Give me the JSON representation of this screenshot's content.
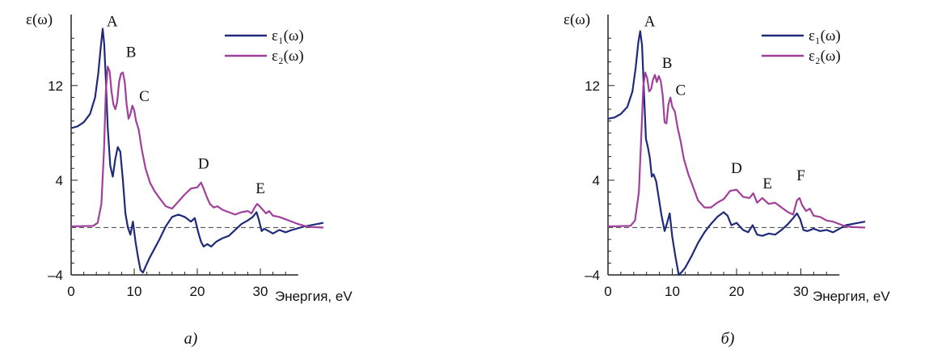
{
  "chart_data": [
    {
      "type": "line",
      "panel_caption": "а)",
      "ylabel": "ε(ω)",
      "xlabel": "Энергия, eV",
      "xlim": [
        0,
        40
      ],
      "ylim": [
        -4,
        18
      ],
      "x_ticks": [
        0,
        10,
        20,
        30
      ],
      "y_ticks": [
        -4,
        4,
        12
      ],
      "zero_line": "dashed",
      "legend": {
        "placement": "top-right"
      },
      "series": [
        {
          "name": "ε₁(ω)",
          "color": "#1f2a7a",
          "points": [
            [
              0,
              8.4
            ],
            [
              1,
              8.55
            ],
            [
              2,
              8.9
            ],
            [
              3,
              9.6
            ],
            [
              3.8,
              11
            ],
            [
              4.3,
              13
            ],
            [
              4.7,
              15.3
            ],
            [
              5.0,
              16.8
            ],
            [
              5.25,
              15.5
            ],
            [
              5.5,
              12.5
            ],
            [
              5.8,
              8.5
            ],
            [
              6.2,
              5.2
            ],
            [
              6.6,
              4.3
            ],
            [
              7.0,
              5.8
            ],
            [
              7.4,
              6.8
            ],
            [
              7.8,
              6.4
            ],
            [
              8.2,
              4.0
            ],
            [
              8.6,
              1.2
            ],
            [
              9.0,
              0.0
            ],
            [
              9.4,
              -0.6
            ],
            [
              9.8,
              0.5
            ],
            [
              10.2,
              -1.2
            ],
            [
              10.6,
              -2.5
            ],
            [
              11.0,
              -3.6
            ],
            [
              11.4,
              -3.8
            ],
            [
              11.8,
              -3.3
            ],
            [
              12.4,
              -2.6
            ],
            [
              13,
              -2.0
            ],
            [
              14,
              -1.0
            ],
            [
              15,
              0.1
            ],
            [
              16,
              0.9
            ],
            [
              17,
              1.1
            ],
            [
              18,
              0.9
            ],
            [
              19,
              0.5
            ],
            [
              19.6,
              0.8
            ],
            [
              20.2,
              -0.5
            ],
            [
              20.6,
              -1.2
            ],
            [
              21,
              -1.6
            ],
            [
              21.6,
              -1.4
            ],
            [
              22.2,
              -1.6
            ],
            [
              23,
              -1.2
            ],
            [
              24,
              -0.9
            ],
            [
              25,
              -0.7
            ],
            [
              26,
              -0.2
            ],
            [
              27,
              0.3
            ],
            [
              28,
              0.6
            ],
            [
              28.8,
              0.9
            ],
            [
              29.4,
              1.3
            ],
            [
              29.8,
              0.6
            ],
            [
              30.2,
              -0.3
            ],
            [
              30.6,
              -0.1
            ],
            [
              31,
              -0.2
            ],
            [
              32,
              -0.5
            ],
            [
              33,
              -0.2
            ],
            [
              34,
              -0.4
            ],
            [
              35,
              -0.2
            ],
            [
              37,
              0.1
            ],
            [
              39,
              0.3
            ],
            [
              40,
              0.4
            ]
          ]
        },
        {
          "name": "ε₂(ω)",
          "color": "#a0409a",
          "points": [
            [
              0,
              0.1
            ],
            [
              3.5,
              0.15
            ],
            [
              4.2,
              0.4
            ],
            [
              4.8,
              2.0
            ],
            [
              5.2,
              6.5
            ],
            [
              5.5,
              11.5
            ],
            [
              5.8,
              13.6
            ],
            [
              6.1,
              13.2
            ],
            [
              6.4,
              11.5
            ],
            [
              6.7,
              10.4
            ],
            [
              7.0,
              10.0
            ],
            [
              7.3,
              10.6
            ],
            [
              7.6,
              12.3
            ],
            [
              7.9,
              13.0
            ],
            [
              8.2,
              13.1
            ],
            [
              8.5,
              12.3
            ],
            [
              8.8,
              10.4
            ],
            [
              9.1,
              9.2
            ],
            [
              9.4,
              9.6
            ],
            [
              9.7,
              10.3
            ],
            [
              10.0,
              9.9
            ],
            [
              10.3,
              9.0
            ],
            [
              10.7,
              8.3
            ],
            [
              11.2,
              6.6
            ],
            [
              11.8,
              5.0
            ],
            [
              12.5,
              3.8
            ],
            [
              13.2,
              3.1
            ],
            [
              14,
              2.5
            ],
            [
              15,
              1.8
            ],
            [
              16,
              1.6
            ],
            [
              17,
              2.2
            ],
            [
              18,
              2.8
            ],
            [
              19,
              3.3
            ],
            [
              20,
              3.4
            ],
            [
              20.6,
              3.8
            ],
            [
              21,
              3.3
            ],
            [
              21.5,
              2.6
            ],
            [
              22,
              2.0
            ],
            [
              22.6,
              1.7
            ],
            [
              23.2,
              1.8
            ],
            [
              24,
              1.5
            ],
            [
              25,
              1.3
            ],
            [
              26,
              1.1
            ],
            [
              27,
              1.3
            ],
            [
              28,
              1.4
            ],
            [
              28.6,
              1.2
            ],
            [
              29.1,
              1.7
            ],
            [
              29.5,
              2.0
            ],
            [
              29.9,
              1.8
            ],
            [
              30.4,
              1.5
            ],
            [
              30.9,
              1.2
            ],
            [
              31.4,
              1.4
            ],
            [
              32,
              1.0
            ],
            [
              33,
              0.9
            ],
            [
              34,
              0.7
            ],
            [
              35,
              0.5
            ],
            [
              36,
              0.3
            ],
            [
              37,
              0.15
            ],
            [
              38,
              0.05
            ],
            [
              40,
              0.0
            ]
          ]
        }
      ],
      "annotations": [
        {
          "text": "A",
          "x": 6.5,
          "y": 17.0
        },
        {
          "text": "B",
          "x": 9.5,
          "y": 14.4
        },
        {
          "text": "C",
          "x": 11.6,
          "y": 10.7
        },
        {
          "text": "D",
          "x": 21.0,
          "y": 5.0
        },
        {
          "text": "E",
          "x": 30.0,
          "y": 2.9
        }
      ]
    },
    {
      "type": "line",
      "panel_caption": "б)",
      "ylabel": "ε(ω)",
      "xlabel": "Энергия, eV",
      "xlim": [
        0,
        40
      ],
      "ylim": [
        -4,
        18
      ],
      "x_ticks": [
        0,
        10,
        20,
        30
      ],
      "y_ticks": [
        -4,
        4,
        12
      ],
      "zero_line": "dashed",
      "legend": {
        "placement": "top-right"
      },
      "series": [
        {
          "name": "ε₁(ω)",
          "color": "#1f2a7a",
          "points": [
            [
              0,
              9.2
            ],
            [
              1,
              9.3
            ],
            [
              2,
              9.6
            ],
            [
              3,
              10.2
            ],
            [
              3.8,
              11.5
            ],
            [
              4.3,
              13.5
            ],
            [
              4.7,
              15.6
            ],
            [
              5.0,
              16.6
            ],
            [
              5.3,
              15.4
            ],
            [
              5.6,
              11.4
            ],
            [
              5.9,
              7.5
            ],
            [
              6.2,
              6.8
            ],
            [
              6.5,
              5.9
            ],
            [
              6.8,
              4.3
            ],
            [
              7.1,
              4.5
            ],
            [
              7.5,
              3.9
            ],
            [
              7.9,
              2.5
            ],
            [
              8.3,
              1.1
            ],
            [
              8.8,
              -0.3
            ],
            [
              9.2,
              0.4
            ],
            [
              9.6,
              1.2
            ],
            [
              10.0,
              -0.8
            ],
            [
              10.5,
              -2.5
            ],
            [
              11.0,
              -4.0
            ],
            [
              11.4,
              -3.8
            ],
            [
              12,
              -3.4
            ],
            [
              13,
              -2.4
            ],
            [
              14,
              -1.3
            ],
            [
              15,
              -0.4
            ],
            [
              16,
              0.3
            ],
            [
              17,
              0.9
            ],
            [
              18,
              1.3
            ],
            [
              18.6,
              1.0
            ],
            [
              19.2,
              0.2
            ],
            [
              20,
              0.4
            ],
            [
              21,
              -0.2
            ],
            [
              21.8,
              -0.4
            ],
            [
              22.5,
              0.2
            ],
            [
              23.2,
              -0.6
            ],
            [
              24,
              -0.7
            ],
            [
              25,
              -0.5
            ],
            [
              26,
              -0.6
            ],
            [
              27,
              -0.2
            ],
            [
              28,
              0.3
            ],
            [
              28.8,
              0.8
            ],
            [
              29.4,
              1.2
            ],
            [
              29.9,
              0.7
            ],
            [
              30.4,
              -0.2
            ],
            [
              31,
              -0.3
            ],
            [
              32,
              -0.1
            ],
            [
              33,
              -0.3
            ],
            [
              34,
              -0.2
            ],
            [
              35,
              -0.4
            ],
            [
              36,
              -0.1
            ],
            [
              37,
              0.2
            ],
            [
              39,
              0.4
            ],
            [
              40,
              0.5
            ]
          ]
        },
        {
          "name": "ε₂(ω)",
          "color": "#a0409a",
          "points": [
            [
              0,
              0.1
            ],
            [
              3.5,
              0.15
            ],
            [
              4.2,
              0.6
            ],
            [
              4.8,
              3.0
            ],
            [
              5.2,
              8.0
            ],
            [
              5.5,
              12.0
            ],
            [
              5.8,
              13.1
            ],
            [
              6.1,
              12.6
            ],
            [
              6.4,
              11.5
            ],
            [
              6.7,
              11.7
            ],
            [
              7.0,
              12.5
            ],
            [
              7.3,
              12.9
            ],
            [
              7.6,
              12.3
            ],
            [
              7.9,
              12.8
            ],
            [
              8.2,
              12.4
            ],
            [
              8.5,
              11.2
            ],
            [
              8.8,
              8.9
            ],
            [
              9.1,
              8.8
            ],
            [
              9.4,
              10.4
            ],
            [
              9.7,
              11.0
            ],
            [
              10.0,
              10.2
            ],
            [
              10.4,
              9.8
            ],
            [
              10.8,
              8.5
            ],
            [
              11.3,
              7.3
            ],
            [
              11.8,
              5.8
            ],
            [
              12.5,
              4.5
            ],
            [
              13.2,
              3.5
            ],
            [
              14,
              2.3
            ],
            [
              15,
              1.7
            ],
            [
              16,
              1.7
            ],
            [
              17,
              2.1
            ],
            [
              18,
              2.4
            ],
            [
              19,
              3.1
            ],
            [
              20,
              3.2
            ],
            [
              21,
              2.6
            ],
            [
              22,
              2.5
            ],
            [
              22.6,
              2.9
            ],
            [
              23.2,
              2.1
            ],
            [
              24,
              2.5
            ],
            [
              25,
              2.0
            ],
            [
              26,
              2.1
            ],
            [
              27,
              1.7
            ],
            [
              28,
              1.3
            ],
            [
              28.8,
              1.1
            ],
            [
              29.4,
              2.3
            ],
            [
              29.8,
              2.5
            ],
            [
              30.2,
              1.9
            ],
            [
              30.8,
              1.4
            ],
            [
              31.4,
              1.6
            ],
            [
              32,
              1.0
            ],
            [
              33,
              0.9
            ],
            [
              34,
              0.6
            ],
            [
              35,
              0.5
            ],
            [
              36,
              0.3
            ],
            [
              37,
              0.1
            ],
            [
              38,
              0.05
            ],
            [
              40,
              0.0
            ]
          ]
        }
      ],
      "annotations": [
        {
          "text": "A",
          "x": 6.5,
          "y": 17.0
        },
        {
          "text": "B",
          "x": 9.2,
          "y": 13.5
        },
        {
          "text": "C",
          "x": 11.3,
          "y": 11.2
        },
        {
          "text": "D",
          "x": 20.0,
          "y": 4.6
        },
        {
          "text": "E",
          "x": 24.8,
          "y": 3.3
        },
        {
          "text": "F",
          "x": 30.0,
          "y": 4.0
        }
      ]
    }
  ]
}
